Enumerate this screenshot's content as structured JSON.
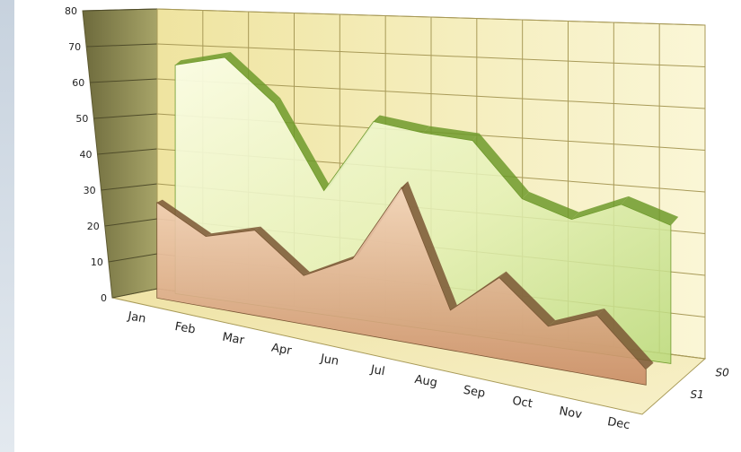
{
  "chart_data": {
    "type": "area",
    "style": "3d",
    "categories": [
      "Jan",
      "Feb",
      "Mar",
      "Apr",
      "Jun",
      "Jul",
      "Aug",
      "Sep",
      "Oct",
      "Nov",
      "Dec"
    ],
    "series": [
      {
        "name": "S0",
        "values": [
          66,
          69,
          57,
          34,
          54,
          52,
          51,
          37,
          33,
          38,
          34
        ],
        "color": "#c9e28e"
      },
      {
        "name": "S1",
        "values": [
          29,
          21,
          25,
          14,
          21,
          43,
          11,
          22,
          11,
          16,
          4
        ],
        "color": "#c98a5c"
      }
    ],
    "ylim": [
      0,
      80
    ],
    "yticks": [
      "0",
      "10",
      "20",
      "30",
      "40",
      "50",
      "60",
      "70",
      "80"
    ],
    "grid": true,
    "colors": {
      "back_wall": "#f1e9a3",
      "side_wall": "#8a8a52",
      "grid_line": "#a89a58"
    }
  }
}
